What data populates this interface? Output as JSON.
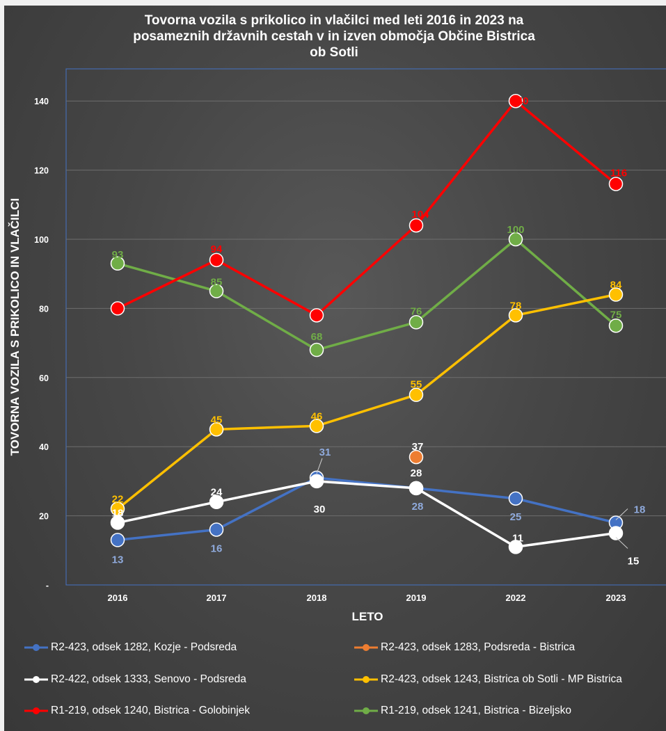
{
  "chart_data": {
    "type": "line",
    "title": "Tovorna vozila s prikolico in vlačilci med leti 2016 in 2023 na posameznih državnih cestah v in izven območja Občine Bistrica ob Sotli",
    "title_lines": [
      "Tovorna vozila s prikolico in vlačilci med leti 2016 in 2023 na",
      "posameznih državnih cestah v in izven območja Občine Bistrica",
      "ob Sotli"
    ],
    "xlabel": "LETO",
    "ylabel": "TOVORNA VOZILA S PRIKOLICO IN VLAČILCI",
    "categories": [
      "2016",
      "2017",
      "2018",
      "2019",
      "2022",
      "2023"
    ],
    "ylim": [
      0,
      150
    ],
    "yticks": [
      0,
      20,
      40,
      60,
      80,
      100,
      120,
      140
    ],
    "ytick_labels": [
      "-",
      "20",
      "40",
      "60",
      "80",
      "100",
      "120",
      "140"
    ],
    "grid": true,
    "legend_position": "bottom",
    "series": [
      {
        "name": "R1-219, odsek 1241, Bistrica - Bizeljsko",
        "color": "#70ad47",
        "values": [
          93,
          85,
          68,
          76,
          100,
          75
        ]
      },
      {
        "name": "R2-423, odsek 1243, Bistrica ob Sotli - MP Bistrica",
        "color": "#ffc000",
        "values": [
          22,
          45,
          46,
          55,
          78,
          84
        ]
      },
      {
        "name": "R2-423, odsek 1282, Kozje - Podsreda",
        "color": "#4472c4",
        "values": [
          13,
          16,
          31,
          28,
          25,
          18
        ]
      },
      {
        "name": "R2-422, odsek 1333, Senovo - Podsreda",
        "color": "#ffffff",
        "values": [
          18,
          24,
          30,
          28,
          11,
          15
        ]
      },
      {
        "name": "R1-219, odsek 1240, Bistrica - Golobinjek",
        "color": "#ff0000",
        "values": [
          80,
          94,
          78,
          104,
          140,
          116
        ]
      },
      {
        "name": "R2-423, odsek 1283, Podsreda - Bistrica",
        "color": "#ed7d31",
        "values": [
          null,
          null,
          null,
          37,
          null,
          null
        ]
      }
    ],
    "data_labels": [
      [
        "93",
        "85",
        "68",
        "76",
        "100",
        "75"
      ],
      [
        "22",
        "45",
        "46",
        "55",
        "78",
        "84"
      ],
      [
        "13",
        "16",
        "31",
        "28",
        "25",
        "18"
      ],
      [
        "18",
        "24",
        "30",
        "28",
        "11",
        "15"
      ],
      [
        "80",
        "94",
        "78",
        "104",
        "140",
        "116"
      ],
      [
        null,
        null,
        null,
        "37",
        null,
        null
      ]
    ]
  },
  "legend": [
    "R2-423, odsek 1282, Kozje - Podsreda",
    "R2-423, odsek 1283, Podsreda - Bistrica",
    "R2-422, odsek 1333, Senovo - Podsreda",
    "R2-423, odsek 1243, Bistrica ob Sotli - MP Bistrica",
    "R1-219, odsek 1240, Bistrica - Golobinjek",
    "R1-219, odsek 1241, Bistrica - Bizeljsko"
  ],
  "legend_colors": [
    "#4472c4",
    "#ed7d31",
    "#ffffff",
    "#ffc000",
    "#ff0000",
    "#70ad47"
  ]
}
